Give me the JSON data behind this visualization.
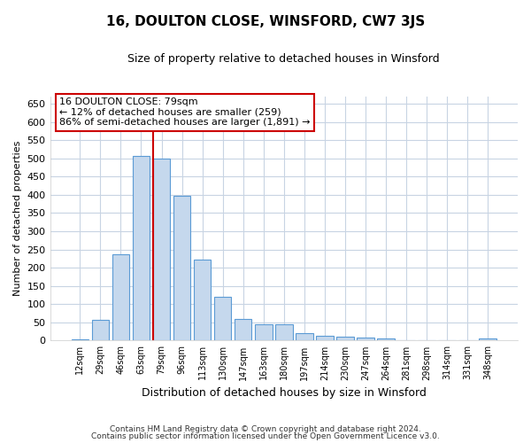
{
  "title": "16, DOULTON CLOSE, WINSFORD, CW7 3JS",
  "subtitle": "Size of property relative to detached houses in Winsford",
  "xlabel": "Distribution of detached houses by size in Winsford",
  "ylabel": "Number of detached properties",
  "bar_color": "#c5d8ed",
  "bar_edge_color": "#5b9bd5",
  "background_color": "#ffffff",
  "grid_color": "#c8d4e3",
  "annotation_line_color": "#cc0000",
  "annotation_box_color": "#cc0000",
  "annotation_line1": "16 DOULTON CLOSE: 79sqm",
  "annotation_line2": "← 12% of detached houses are smaller (259)",
  "annotation_line3": "86% of semi-detached houses are larger (1,891) →",
  "footer_line1": "Contains HM Land Registry data © Crown copyright and database right 2024.",
  "footer_line2": "Contains public sector information licensed under the Open Government Licence v3.0.",
  "categories": [
    "12sqm",
    "29sqm",
    "46sqm",
    "63sqm",
    "79sqm",
    "96sqm",
    "113sqm",
    "130sqm",
    "147sqm",
    "163sqm",
    "180sqm",
    "197sqm",
    "214sqm",
    "230sqm",
    "247sqm",
    "264sqm",
    "281sqm",
    "298sqm",
    "314sqm",
    "331sqm",
    "348sqm"
  ],
  "values": [
    3,
    57,
    237,
    507,
    500,
    398,
    222,
    120,
    60,
    46,
    46,
    20,
    13,
    10,
    8,
    5,
    0,
    0,
    0,
    0,
    7
  ],
  "property_bin_index": 4,
  "ylim": [
    0,
    670
  ],
  "yticks": [
    0,
    50,
    100,
    150,
    200,
    250,
    300,
    350,
    400,
    450,
    500,
    550,
    600,
    650
  ]
}
